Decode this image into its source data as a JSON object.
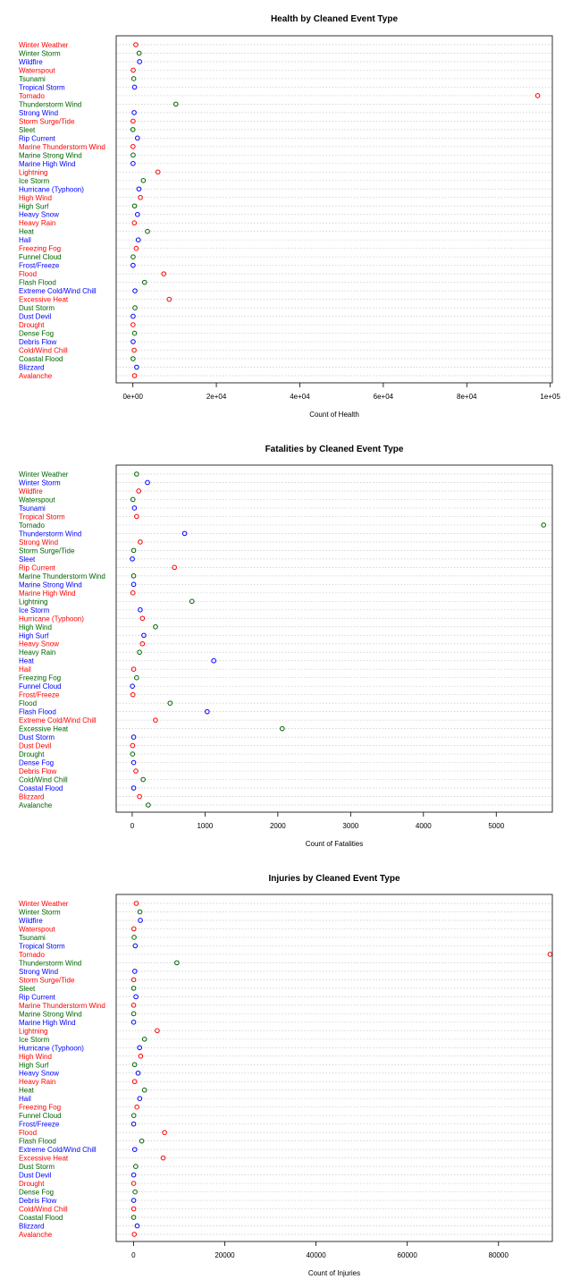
{
  "palette": [
    "#ff0000",
    "#006400",
    "#0000ff"
  ],
  "chart_data": [
    {
      "type": "scatter",
      "title": "Health by Cleaned Event Type",
      "xlabel": "Count of Health",
      "xlim": [
        -4000,
        100500
      ],
      "xticks": [
        0,
        20000,
        40000,
        60000,
        80000,
        100000
      ],
      "xtick_labels": [
        "0e+00",
        "2e+04",
        "4e+04",
        "6e+04",
        "8e+04",
        "1e+05"
      ],
      "categories": [
        "Winter Weather",
        "Winter Storm",
        "Wildfire",
        "Waterspout",
        "Tsunami",
        "Tropical Storm",
        "Tornado",
        "Thunderstorm Wind",
        "Strong Wind",
        "Storm Surge/Tide",
        "Sleet",
        "Rip Current",
        "Marine Thunderstorm Wind",
        "Marine Strong Wind",
        "Marine High Wind",
        "Lightning",
        "Ice Storm",
        "Hurricane (Typhoon)",
        "High Wind",
        "High Surf",
        "Heavy Snow",
        "Heavy Rain",
        "Heat",
        "Hail",
        "Freezing Fog",
        "Funnel Cloud",
        "Frost/Freeze",
        "Flood",
        "Flash Flood",
        "Extreme Cold/Wind Chill",
        "Excessive Heat",
        "Dust Storm",
        "Dust Devil",
        "Drought",
        "Dense Fog",
        "Debris Flow",
        "Cold/Wind Chill",
        "Coastal Flood",
        "Blizzard",
        "Avalanche"
      ],
      "values": [
        700,
        1500,
        1600,
        80,
        200,
        400,
        97000,
        10300,
        300,
        40,
        5,
        1100,
        25,
        60,
        40,
        6000,
        2500,
        1450,
        1800,
        400,
        1100,
        350,
        3500,
        1300,
        800,
        60,
        40,
        7400,
        2800,
        500,
        8700,
        500,
        50,
        30,
        400,
        60,
        300,
        40,
        900,
        400
      ],
      "colors": [
        0,
        1,
        2,
        0,
        1,
        2,
        0,
        1,
        2,
        0,
        1,
        2,
        0,
        1,
        2,
        0,
        1,
        2,
        0,
        1,
        2,
        0,
        1,
        2,
        0,
        1,
        2,
        0,
        1,
        2,
        0,
        1,
        2,
        0,
        1,
        2,
        0,
        1,
        2,
        0
      ]
    },
    {
      "type": "scatter",
      "title": "Fatalities by Cleaned Event Type",
      "xlabel": "Count of Fatalities",
      "xlim": [
        -220,
        5770
      ],
      "xticks": [
        0,
        1000,
        2000,
        3000,
        4000,
        5000
      ],
      "xtick_labels": [
        "0",
        "1000",
        "2000",
        "3000",
        "4000",
        "5000"
      ],
      "categories": [
        "Winter Weather",
        "Winter Storm",
        "Wildfire",
        "Waterspout",
        "Tsunami",
        "Tropical Storm",
        "Tornado",
        "Thunderstorm Wind",
        "Strong Wind",
        "Storm Surge/Tide",
        "Sleet",
        "Rip Current",
        "Marine Thunderstorm Wind",
        "Marine Strong Wind",
        "Marine High Wind",
        "Lightning",
        "Ice Storm",
        "Hurricane (Typhoon)",
        "High Wind",
        "High Surf",
        "Heavy Snow",
        "Heavy Rain",
        "Heat",
        "Hail",
        "Freezing Fog",
        "Funnel Cloud",
        "Frost/Freeze",
        "Flood",
        "Flash Flood",
        "Extreme Cold/Wind Chill",
        "Excessive Heat",
        "Dust Storm",
        "Dust Devil",
        "Drought",
        "Dense Fog",
        "Debris Flow",
        "Cold/Wind Chill",
        "Coastal Flood",
        "Blizzard",
        "Avalanche"
      ],
      "values": [
        60,
        210,
        90,
        10,
        30,
        60,
        5650,
        720,
        110,
        20,
        2,
        580,
        20,
        20,
        10,
        820,
        110,
        140,
        320,
        160,
        140,
        100,
        1120,
        20,
        60,
        3,
        10,
        520,
        1030,
        320,
        2060,
        20,
        5,
        5,
        20,
        50,
        150,
        20,
        100,
        220
      ],
      "colors": [
        1,
        2,
        0,
        1,
        2,
        0,
        1,
        2,
        0,
        1,
        2,
        0,
        1,
        2,
        0,
        1,
        2,
        0,
        1,
        2,
        0,
        1,
        2,
        0,
        1,
        2,
        0,
        1,
        2,
        0,
        1,
        2,
        0,
        1,
        2,
        0,
        1,
        2,
        0,
        1
      ]
    },
    {
      "type": "scatter",
      "title": "Injuries by Cleaned Event Type",
      "xlabel": "Count of Injuries",
      "xlim": [
        -3800,
        91800
      ],
      "xticks": [
        0,
        20000,
        40000,
        60000,
        80000
      ],
      "xtick_labels": [
        "0",
        "20000",
        "40000",
        "60000",
        "80000"
      ],
      "categories": [
        "Winter Weather",
        "Winter Storm",
        "Wildfire",
        "Waterspout",
        "Tsunami",
        "Tropical Storm",
        "Tornado",
        "Thunderstorm Wind",
        "Strong Wind",
        "Storm Surge/Tide",
        "Sleet",
        "Rip Current",
        "Marine Thunderstorm Wind",
        "Marine Strong Wind",
        "Marine High Wind",
        "Lightning",
        "Ice Storm",
        "Hurricane (Typhoon)",
        "High Wind",
        "High Surf",
        "Heavy Snow",
        "Heavy Rain",
        "Heat",
        "Hail",
        "Freezing Fog",
        "Funnel Cloud",
        "Frost/Freeze",
        "Flood",
        "Flash Flood",
        "Extreme Cold/Wind Chill",
        "Excessive Heat",
        "Dust Storm",
        "Dust Devil",
        "Drought",
        "Dense Fog",
        "Debris Flow",
        "Cold/Wind Chill",
        "Coastal Flood",
        "Blizzard",
        "Avalanche"
      ],
      "values": [
        600,
        1400,
        1500,
        70,
        130,
        380,
        91300,
        9500,
        280,
        40,
        30,
        530,
        30,
        40,
        30,
        5200,
        2400,
        1330,
        1560,
        240,
        1000,
        250,
        2400,
        1360,
        740,
        60,
        30,
        6800,
        1800,
        260,
        6500,
        480,
        40,
        30,
        340,
        40,
        40,
        30,
        800,
        170
      ],
      "colors": [
        0,
        1,
        2,
        0,
        1,
        2,
        0,
        1,
        2,
        0,
        1,
        2,
        0,
        1,
        2,
        0,
        1,
        2,
        0,
        1,
        2,
        0,
        1,
        2,
        0,
        1,
        2,
        0,
        1,
        2,
        0,
        1,
        2,
        0,
        1,
        2,
        0,
        1,
        2,
        0
      ]
    }
  ]
}
